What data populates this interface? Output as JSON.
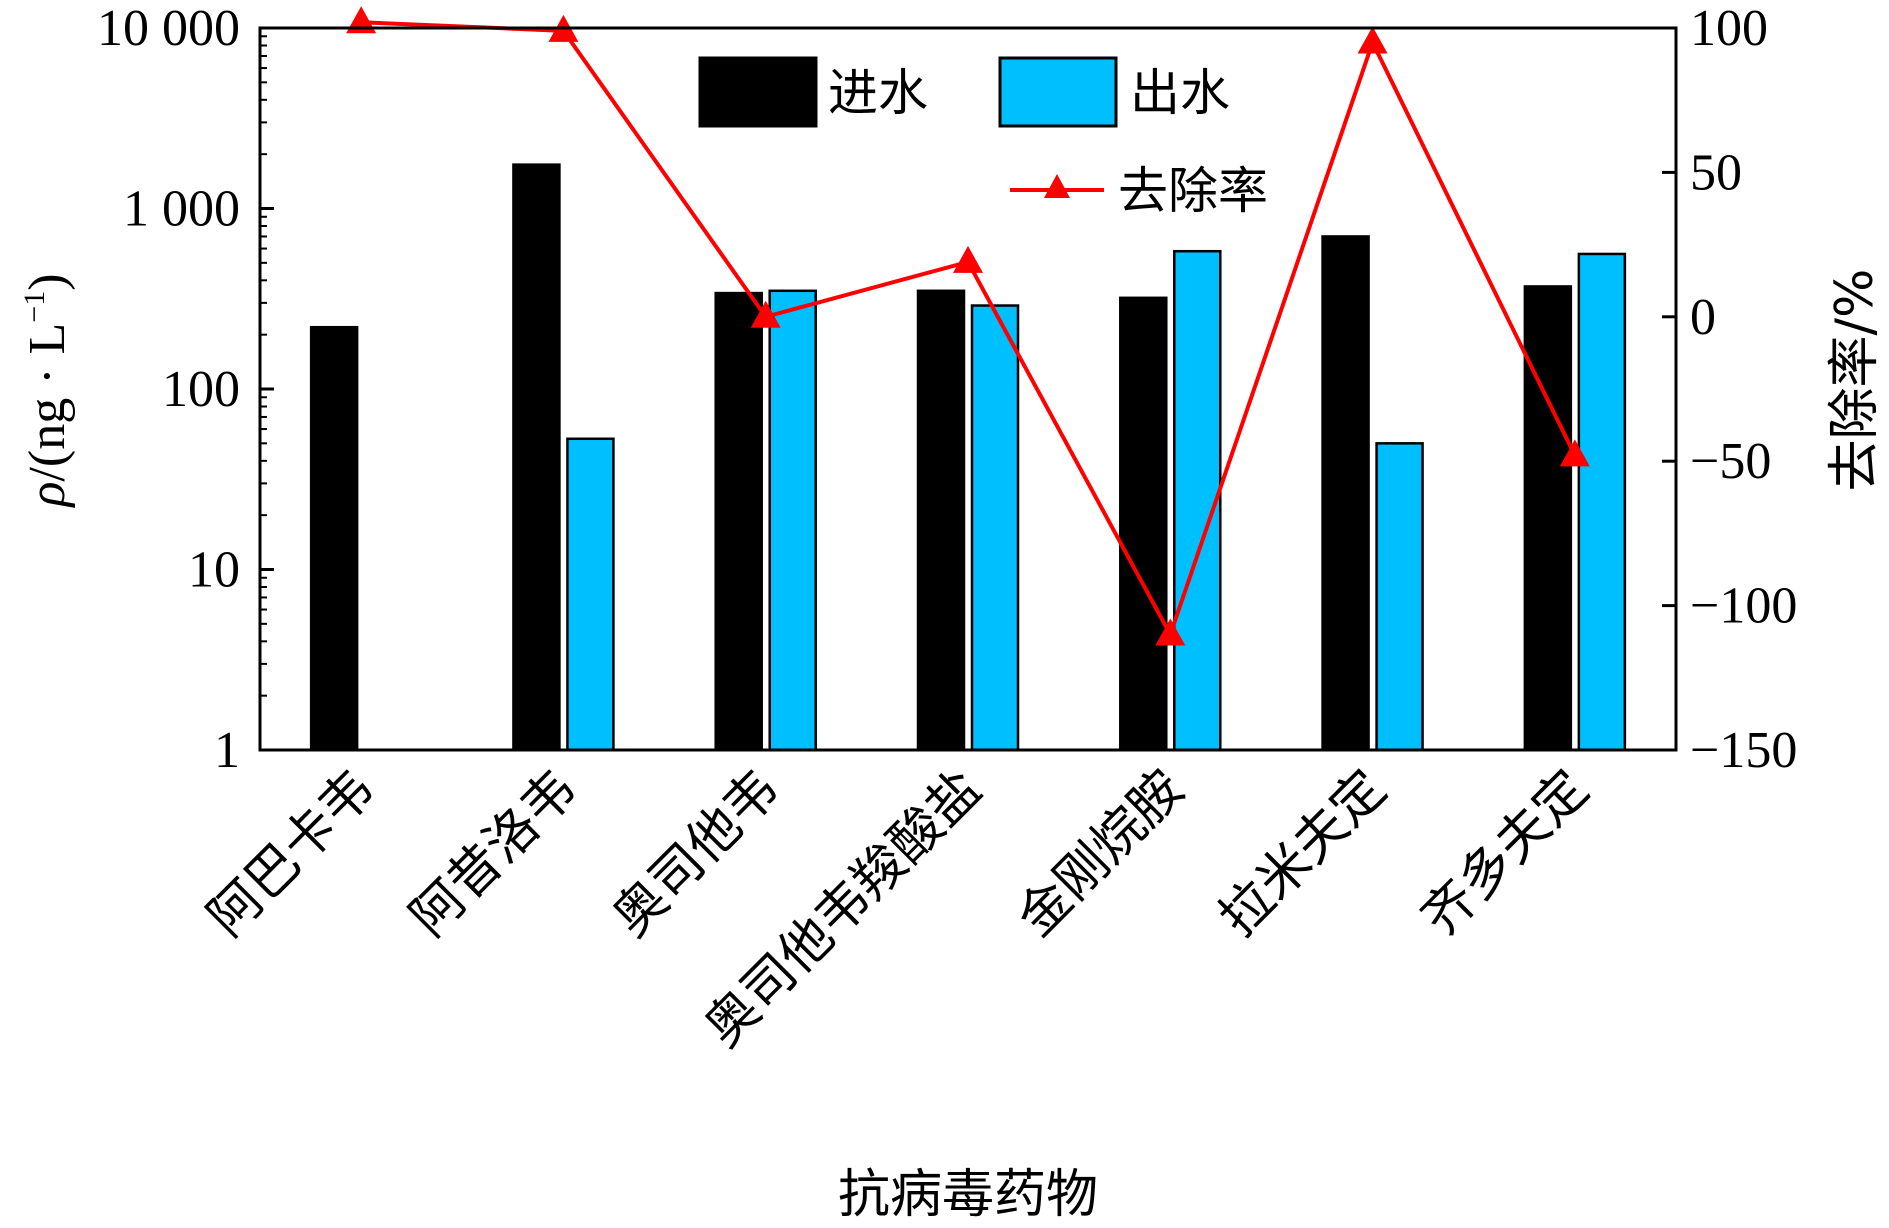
{
  "chart_data": {
    "type": "bar",
    "categories": [
      "阿巴卡韦",
      "阿昔洛韦",
      "奥司他韦",
      "奥司他韦羧酸盐",
      "金刚烷胺",
      "拉米夫定",
      "齐多夫定"
    ],
    "series": [
      {
        "name": "进水",
        "type": "bar",
        "axis": "left",
        "color": "#000000",
        "values": [
          220,
          1750,
          340,
          350,
          320,
          700,
          370
        ]
      },
      {
        "name": "出水",
        "type": "bar",
        "axis": "left",
        "color": "#00BFFF",
        "values": [
          null,
          53,
          350,
          290,
          580,
          50,
          560
        ]
      },
      {
        "name": "去除率",
        "type": "line",
        "axis": "right",
        "color": "#FF0000",
        "marker": "triangle",
        "values": [
          102,
          99,
          0,
          19,
          -110,
          95,
          -48
        ]
      }
    ],
    "left_axis": {
      "label_symbol": "ρ",
      "label_unit": "/(ng · L",
      "label_sup": "−1",
      "label_close": ")",
      "scale": "log",
      "ylim": [
        1,
        10000
      ],
      "ticks": [
        1,
        10,
        100,
        1000,
        10000
      ],
      "tick_labels": [
        "1",
        "10",
        "100",
        "1 000",
        "10 000"
      ]
    },
    "right_axis": {
      "label": "去除率/%",
      "ylim": [
        -150,
        100
      ],
      "ticks": [
        -150,
        -100,
        -50,
        0,
        50,
        100
      ],
      "tick_labels": [
        "−150",
        "−100",
        "−50",
        "0",
        "50",
        "100"
      ]
    },
    "xlabel": "抗病毒药物",
    "legend": {
      "placement": "top-center"
    },
    "grid": false
  }
}
